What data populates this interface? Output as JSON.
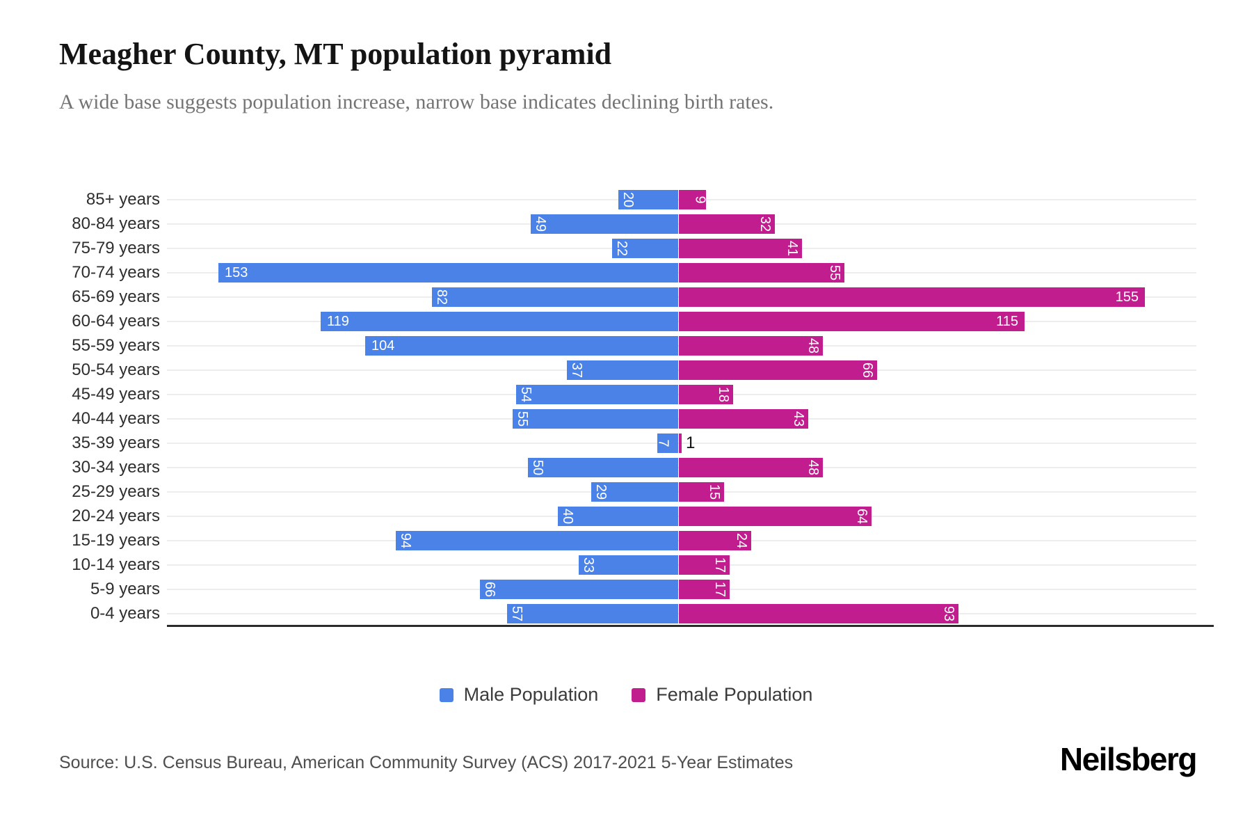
{
  "page": {
    "title": "Meagher County, MT population pyramid",
    "subtitle": "A wide base suggests population increase, narrow base indicates declining birth rates.",
    "source": "Source: U.S. Census Bureau, American Community Survey (ACS) 2017-2021 5-Year Estimates",
    "brand": "Neilsberg"
  },
  "chart_data": {
    "type": "bar",
    "variant": "population-pyramid-horizontal",
    "title": "Meagher County, MT population pyramid",
    "subtitle": "A wide base suggests population increase, narrow base indicates declining birth rates.",
    "xlabel": "",
    "ylabel": "",
    "x_axis_tick_labels": "none",
    "xlim_each_side": [
      0,
      172
    ],
    "grid": true,
    "legend_position": "bottom",
    "categories": [
      "85+ years",
      "80-84 years",
      "75-79 years",
      "70-74 years",
      "65-69 years",
      "60-64 years",
      "55-59 years",
      "50-54 years",
      "45-49 years",
      "40-44 years",
      "35-39 years",
      "30-34 years",
      "25-29 years",
      "20-24 years",
      "15-19 years",
      "10-14 years",
      "5-9 years",
      "0-4 years"
    ],
    "series": [
      {
        "name": "Male Population",
        "side": "left",
        "color": "#4B82E8",
        "values": [
          20,
          49,
          22,
          153,
          82,
          119,
          104,
          37,
          54,
          55,
          7,
          50,
          29,
          40,
          94,
          33,
          66,
          57
        ]
      },
      {
        "name": "Female Population",
        "side": "right",
        "color": "#C11D8E",
        "values": [
          9,
          32,
          41,
          55,
          155,
          115,
          48,
          66,
          18,
          43,
          1,
          48,
          15,
          64,
          24,
          17,
          17,
          93
        ]
      }
    ],
    "bar_value_label_color_inside": "#ffffff",
    "bar_value_label_color_outside": "#111111"
  }
}
